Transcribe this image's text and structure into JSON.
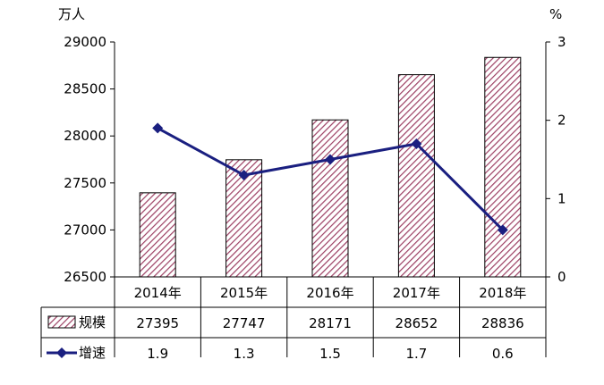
{
  "chart_data": {
    "type": "bar+line",
    "categories": [
      "2014年",
      "2015年",
      "2016年",
      "2017年",
      "2018年"
    ],
    "series": [
      {
        "name": "规模",
        "type": "bar",
        "axis": "left",
        "values": [
          27395,
          27747,
          28171,
          28652,
          28836
        ],
        "color": "#9c3f63"
      },
      {
        "name": "增速",
        "type": "line",
        "axis": "right",
        "values": [
          1.9,
          1.3,
          1.5,
          1.7,
          0.6
        ],
        "color": "#1a1f80"
      }
    ],
    "y_left": {
      "unit": "万人",
      "ylim": [
        26500,
        29000
      ],
      "ticks": [
        26500,
        27000,
        27500,
        28000,
        28500,
        29000
      ]
    },
    "y_right": {
      "unit": "%",
      "ylim": [
        0,
        3
      ],
      "ticks": [
        0,
        1,
        2,
        3
      ]
    },
    "legend": "data-table-below",
    "grid": false
  }
}
